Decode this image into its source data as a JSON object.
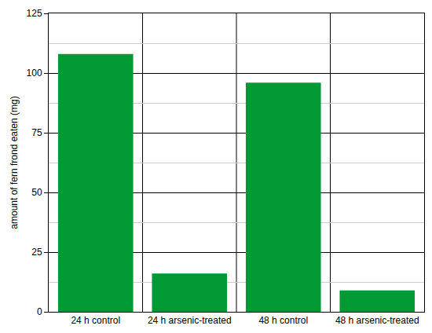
{
  "chart_data": {
    "type": "bar",
    "categories": [
      "24 h control",
      "24 h arsenic-treated",
      "48 h control",
      "48 h arsenic-treated"
    ],
    "values": [
      108,
      16,
      96,
      9
    ],
    "color": "#009933",
    "y_label": "amount of fern frond eaten (mg)",
    "ylim": [
      0,
      125
    ],
    "yticks": [
      0,
      25,
      50,
      75,
      100,
      125
    ],
    "grid": true
  }
}
